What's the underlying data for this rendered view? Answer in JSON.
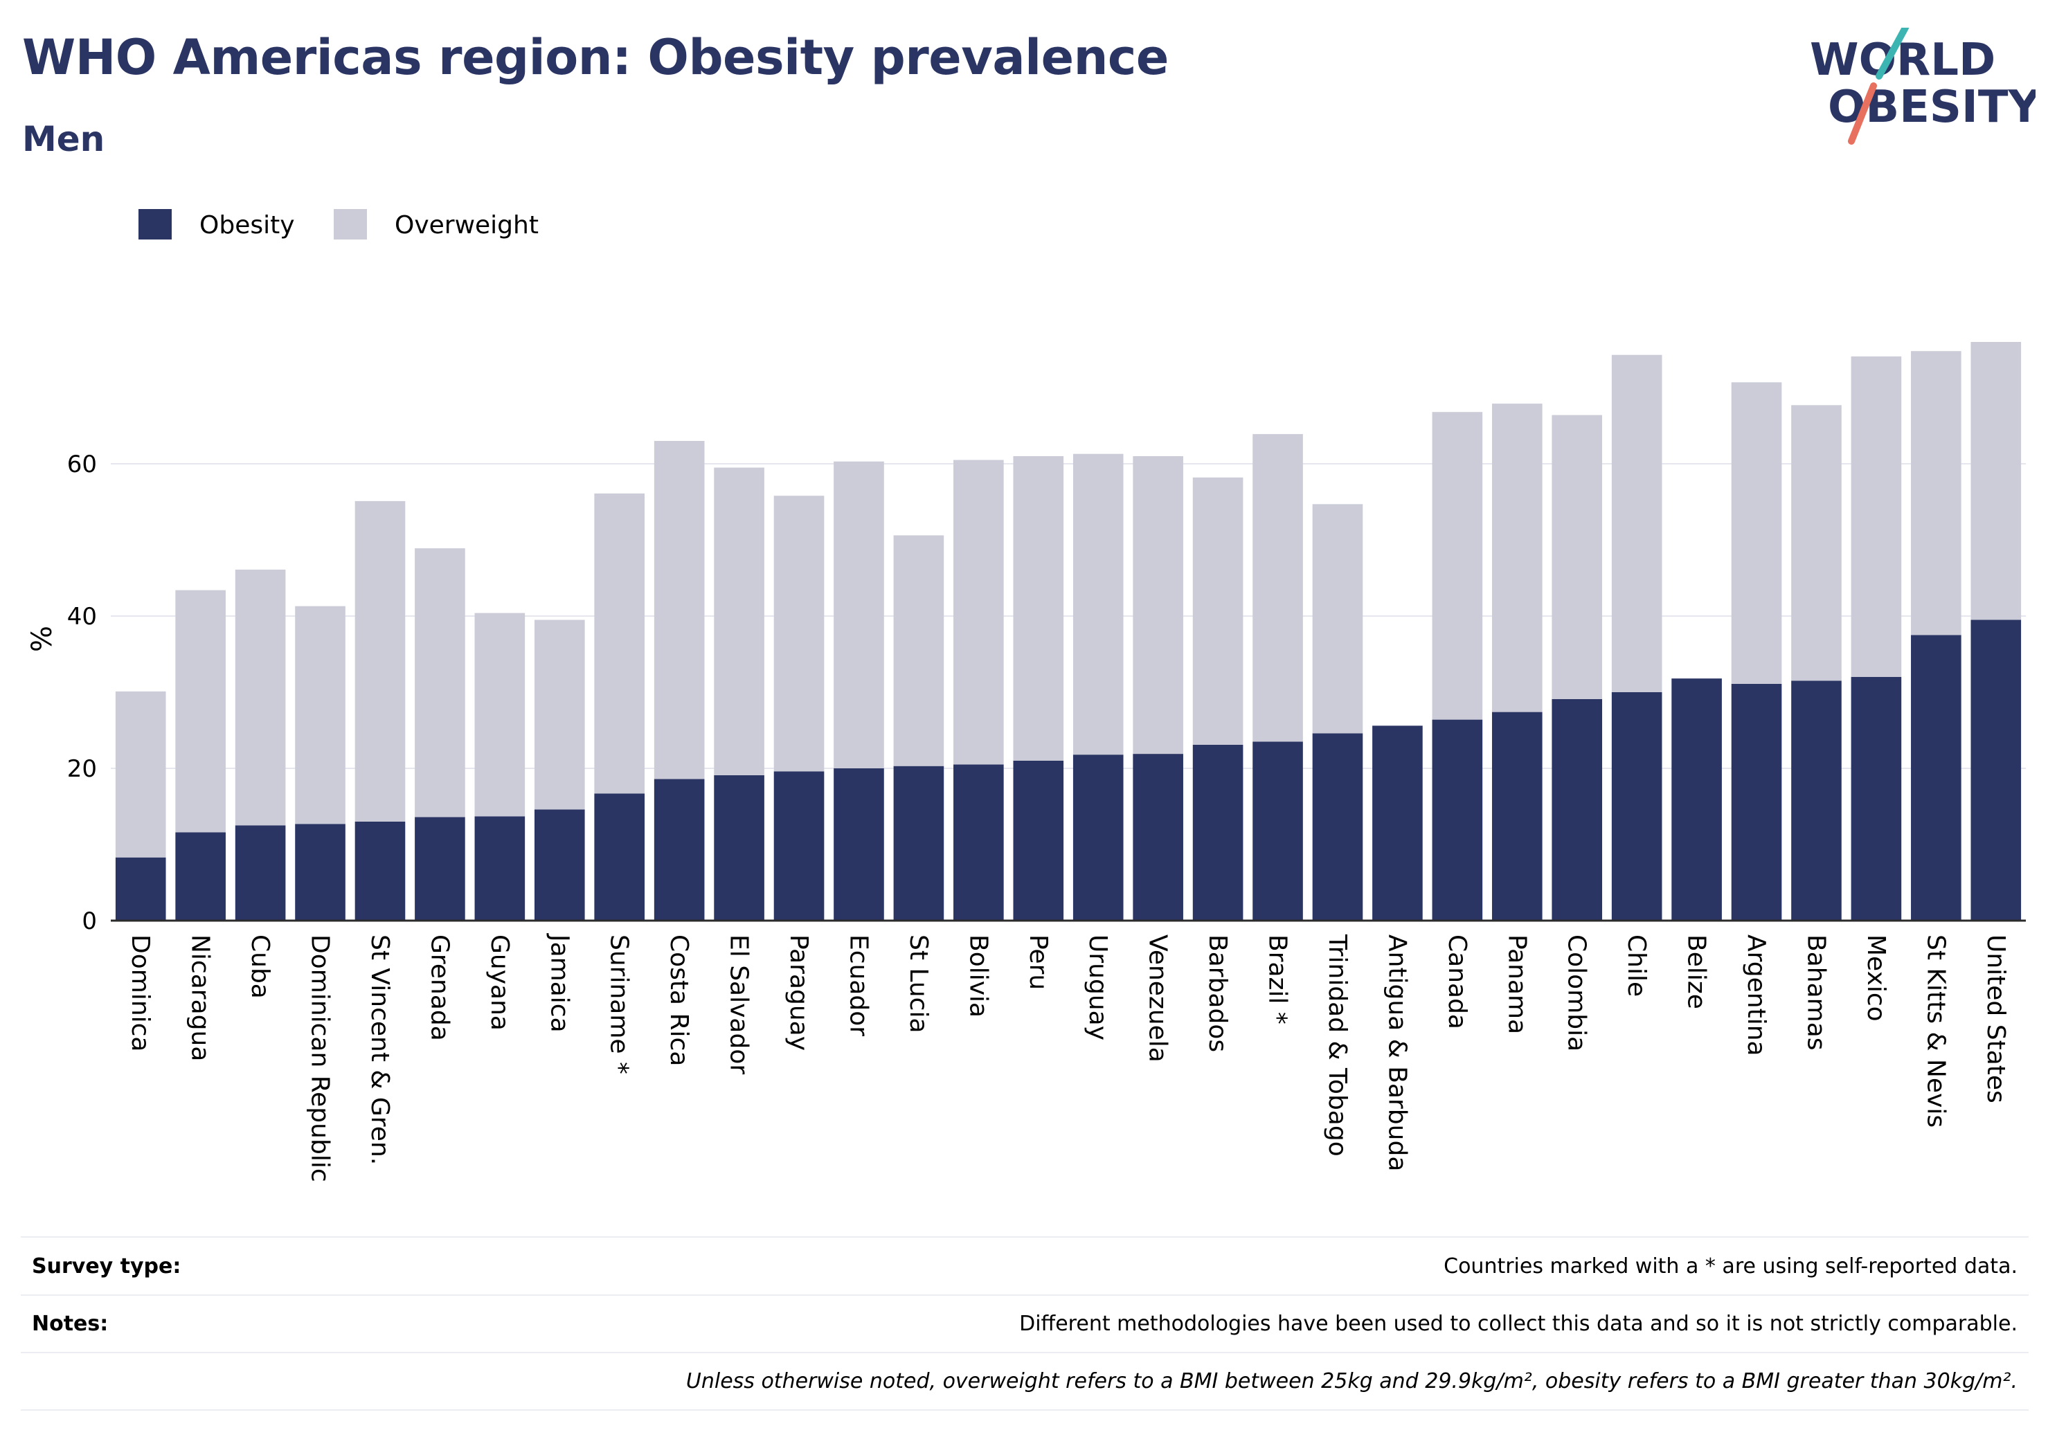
{
  "header": {
    "title": "WHO Americas region: Obesity prevalence",
    "subtitle": "Men"
  },
  "logo": {
    "line1": "WORLD",
    "line2": "OBESITY",
    "accent_teal": "#3cb4b1",
    "accent_coral": "#e8705e"
  },
  "colors": {
    "obesity": "#2b3564",
    "overweight": "#cbccd8",
    "grid": "#e6e7ee",
    "text": "#2b3564"
  },
  "chart_data": {
    "type": "bar",
    "stacked": true,
    "ylabel": "%",
    "ylim": [
      0,
      80
    ],
    "yticks": [
      0,
      20,
      40,
      60
    ],
    "grid": true,
    "legend_placement": "top-left",
    "categories": [
      "Dominica",
      "Nicaragua",
      "Cuba",
      "Dominican Republic",
      "St Vincent & Gren.",
      "Grenada",
      "Guyana",
      "Jamaica",
      "Suriname *",
      "Costa Rica",
      "El Salvador",
      "Paraguay",
      "Ecuador",
      "St Lucia",
      "Bolivia",
      "Peru",
      "Uruguay",
      "Venezuela",
      "Barbados",
      "Brazil *",
      "Trinidad & Tobago",
      "Antigua & Barbuda",
      "Canada",
      "Panama",
      "Colombia",
      "Chile",
      "Belize",
      "Argentina",
      "Bahamas",
      "Mexico",
      "St Kitts & Nevis",
      "United States"
    ],
    "series": [
      {
        "name": "Obesity",
        "values": [
          8.3,
          11.6,
          12.5,
          12.7,
          13.0,
          13.6,
          13.7,
          14.6,
          16.7,
          18.6,
          19.1,
          19.6,
          20.0,
          20.3,
          20.5,
          21.0,
          21.8,
          21.9,
          23.1,
          23.5,
          24.6,
          25.6,
          26.4,
          27.4,
          29.1,
          30.0,
          31.8,
          31.1,
          31.5,
          32.0,
          37.5,
          39.5
        ]
      },
      {
        "name": "Overweight",
        "values": [
          21.8,
          31.8,
          33.6,
          28.6,
          42.1,
          35.3,
          26.7,
          24.9,
          39.4,
          44.4,
          40.4,
          36.2,
          40.3,
          30.3,
          40.0,
          40.0,
          39.5,
          39.1,
          35.1,
          40.4,
          30.1,
          0,
          40.4,
          40.5,
          37.3,
          44.3,
          0,
          39.6,
          36.2,
          42.1,
          37.3,
          36.5
        ]
      }
    ]
  },
  "footer": {
    "survey_label": "Survey type:",
    "survey_text": "Countries marked with a * are using self-reported data.",
    "notes_label": "Notes:",
    "notes_text": "Different methodologies have been used to collect this data and so it is not strictly comparable.",
    "definition_text": "Unless otherwise noted, overweight refers to a BMI between 25kg and 29.9kg/m², obesity refers to a BMI greater than 30kg/m²."
  }
}
